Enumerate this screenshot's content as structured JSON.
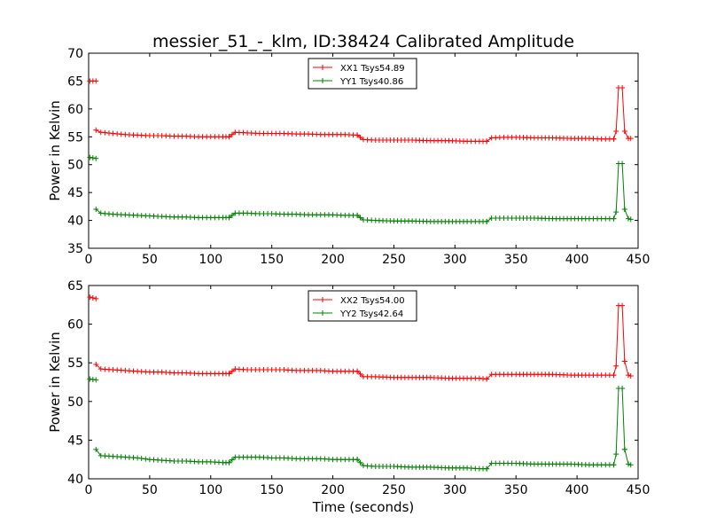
{
  "title": "messier_51_-_klm, ID:38424 Calibrated Amplitude",
  "xlabel": "Time (seconds)",
  "colors": {
    "xx": "#ff0000",
    "yy": "#008000"
  },
  "chart_data": [
    {
      "type": "line",
      "title": "messier_51_-_klm, ID:38424 Calibrated Amplitude",
      "xlabel": "",
      "ylabel": "Power in Kelvin",
      "xlim": [
        0,
        450
      ],
      "ylim": [
        35,
        70
      ],
      "xticks": [
        0,
        50,
        100,
        150,
        200,
        250,
        300,
        350,
        400,
        450
      ],
      "yticks": [
        35,
        40,
        45,
        50,
        55,
        60,
        65,
        70
      ],
      "grid": false,
      "legend_position": "top-center",
      "series": [
        {
          "name": "XX1 Tsys54.89",
          "color": "#ff0000",
          "marker": "+",
          "segments": [
            {
              "x": [
                1,
                6
              ],
              "y": [
                65,
                65
              ]
            },
            {
              "x": [
                6,
                10,
                20,
                30,
                40,
                50,
                60,
                70,
                80,
                90,
                100,
                110,
                115
              ],
              "y": [
                56.2,
                55.8,
                55.6,
                55.4,
                55.3,
                55.2,
                55.2,
                55.1,
                55.1,
                55.0,
                55.0,
                55.0,
                55.0
              ]
            },
            {
              "x": [
                115,
                120,
                130,
                140,
                150,
                160,
                170,
                180,
                190,
                200,
                210,
                220
              ],
              "y": [
                55.0,
                55.8,
                55.7,
                55.6,
                55.6,
                55.6,
                55.5,
                55.5,
                55.4,
                55.4,
                55.4,
                55.3
              ]
            },
            {
              "x": [
                220,
                225,
                235,
                250,
                265,
                280,
                295,
                310,
                320,
                326
              ],
              "y": [
                55.3,
                54.5,
                54.4,
                54.4,
                54.4,
                54.3,
                54.3,
                54.2,
                54.2,
                54.2
              ]
            },
            {
              "x": [
                326,
                330,
                340,
                350,
                365,
                380,
                395,
                410,
                420,
                430
              ],
              "y": [
                54.2,
                54.8,
                54.9,
                54.9,
                54.8,
                54.8,
                54.7,
                54.7,
                54.6,
                54.6
              ]
            },
            {
              "x": [
                430,
                432,
                434,
                437,
                439
              ],
              "y": [
                54.6,
                56.0,
                63.8,
                63.8,
                56.0
              ]
            },
            {
              "x": [
                439,
                442,
                444
              ],
              "y": [
                56.0,
                54.7,
                54.7
              ]
            }
          ]
        },
        {
          "name": "YY1 Tsys40.86",
          "color": "#008000",
          "marker": "+",
          "segments": [
            {
              "x": [
                1,
                6
              ],
              "y": [
                51.3,
                51.1
              ]
            },
            {
              "x": [
                6,
                10,
                20,
                30,
                40,
                50,
                60,
                70,
                80,
                90,
                100,
                110,
                115
              ],
              "y": [
                42.0,
                41.3,
                41.1,
                41.0,
                40.9,
                40.8,
                40.7,
                40.6,
                40.6,
                40.5,
                40.5,
                40.5,
                40.5
              ]
            },
            {
              "x": [
                115,
                120,
                130,
                140,
                150,
                160,
                170,
                180,
                190,
                200,
                210,
                220
              ],
              "y": [
                40.5,
                41.3,
                41.3,
                41.2,
                41.2,
                41.1,
                41.1,
                41.0,
                41.0,
                41.0,
                40.9,
                40.9
              ]
            },
            {
              "x": [
                220,
                225,
                235,
                250,
                265,
                280,
                295,
                310,
                320,
                326
              ],
              "y": [
                40.9,
                40.1,
                40.0,
                39.9,
                39.9,
                39.8,
                39.8,
                39.8,
                39.8,
                39.8
              ]
            },
            {
              "x": [
                326,
                330,
                340,
                350,
                365,
                380,
                395,
                410,
                420,
                430
              ],
              "y": [
                39.8,
                40.4,
                40.4,
                40.4,
                40.4,
                40.3,
                40.3,
                40.3,
                40.3,
                40.3
              ]
            },
            {
              "x": [
                430,
                432,
                434,
                437,
                439
              ],
              "y": [
                40.3,
                41.5,
                50.2,
                50.2,
                42.0
              ]
            },
            {
              "x": [
                439,
                442,
                444
              ],
              "y": [
                42.0,
                40.3,
                40.2
              ]
            }
          ]
        }
      ]
    },
    {
      "type": "line",
      "title": "",
      "xlabel": "Time (seconds)",
      "ylabel": "Power in Kelvin",
      "xlim": [
        0,
        450
      ],
      "ylim": [
        40,
        65
      ],
      "xticks": [
        0,
        50,
        100,
        150,
        200,
        250,
        300,
        350,
        400,
        450
      ],
      "yticks": [
        40,
        45,
        50,
        55,
        60,
        65
      ],
      "grid": false,
      "legend_position": "top-center",
      "series": [
        {
          "name": "XX2 Tsys54.00",
          "color": "#ff0000",
          "marker": "+",
          "segments": [
            {
              "x": [
                1,
                6
              ],
              "y": [
                63.5,
                63.3
              ]
            },
            {
              "x": [
                6,
                10,
                20,
                30,
                40,
                50,
                60,
                70,
                80,
                90,
                100,
                110,
                115
              ],
              "y": [
                54.8,
                54.2,
                54.1,
                54.0,
                53.9,
                53.8,
                53.8,
                53.7,
                53.7,
                53.6,
                53.6,
                53.6,
                53.6
              ]
            },
            {
              "x": [
                115,
                120,
                130,
                140,
                150,
                160,
                170,
                180,
                190,
                200,
                210,
                220
              ],
              "y": [
                53.6,
                54.2,
                54.1,
                54.1,
                54.1,
                54.1,
                54.0,
                54.0,
                54.0,
                53.9,
                53.9,
                53.9
              ]
            },
            {
              "x": [
                220,
                225,
                235,
                250,
                265,
                280,
                295,
                310,
                320,
                326
              ],
              "y": [
                53.9,
                53.2,
                53.2,
                53.1,
                53.1,
                53.1,
                53.0,
                53.0,
                53.0,
                52.9
              ]
            },
            {
              "x": [
                326,
                330,
                340,
                350,
                365,
                380,
                395,
                410,
                420,
                430
              ],
              "y": [
                52.9,
                53.5,
                53.5,
                53.5,
                53.5,
                53.5,
                53.4,
                53.4,
                53.4,
                53.4
              ]
            },
            {
              "x": [
                430,
                432,
                434,
                437,
                439
              ],
              "y": [
                53.4,
                54.6,
                62.4,
                62.4,
                55.2
              ]
            },
            {
              "x": [
                439,
                442,
                444
              ],
              "y": [
                55.2,
                53.4,
                53.3
              ]
            }
          ]
        },
        {
          "name": "YY2 Tsys42.64",
          "color": "#008000",
          "marker": "+",
          "segments": [
            {
              "x": [
                1,
                6
              ],
              "y": [
                52.9,
                52.8
              ]
            },
            {
              "x": [
                6,
                10,
                20,
                30,
                40,
                50,
                60,
                70,
                80,
                90,
                100,
                110,
                115
              ],
              "y": [
                43.8,
                43.0,
                42.9,
                42.8,
                42.7,
                42.5,
                42.4,
                42.3,
                42.3,
                42.2,
                42.2,
                42.1,
                42.1
              ]
            },
            {
              "x": [
                115,
                120,
                130,
                140,
                150,
                160,
                170,
                180,
                190,
                200,
                210,
                220
              ],
              "y": [
                42.1,
                42.8,
                42.8,
                42.8,
                42.7,
                42.7,
                42.6,
                42.6,
                42.6,
                42.5,
                42.5,
                42.5
              ]
            },
            {
              "x": [
                220,
                225,
                235,
                250,
                265,
                280,
                295,
                310,
                320,
                326
              ],
              "y": [
                42.5,
                41.7,
                41.6,
                41.6,
                41.5,
                41.5,
                41.4,
                41.4,
                41.3,
                41.3
              ]
            },
            {
              "x": [
                326,
                330,
                340,
                350,
                365,
                380,
                395,
                410,
                420,
                430
              ],
              "y": [
                41.3,
                42.0,
                42.0,
                42.0,
                41.9,
                41.9,
                41.9,
                41.8,
                41.8,
                41.8
              ]
            },
            {
              "x": [
                430,
                432,
                434,
                437,
                439
              ],
              "y": [
                41.8,
                43.2,
                51.7,
                51.7,
                43.8
              ]
            },
            {
              "x": [
                439,
                442,
                444
              ],
              "y": [
                43.8,
                41.9,
                41.8
              ]
            }
          ]
        }
      ]
    }
  ]
}
